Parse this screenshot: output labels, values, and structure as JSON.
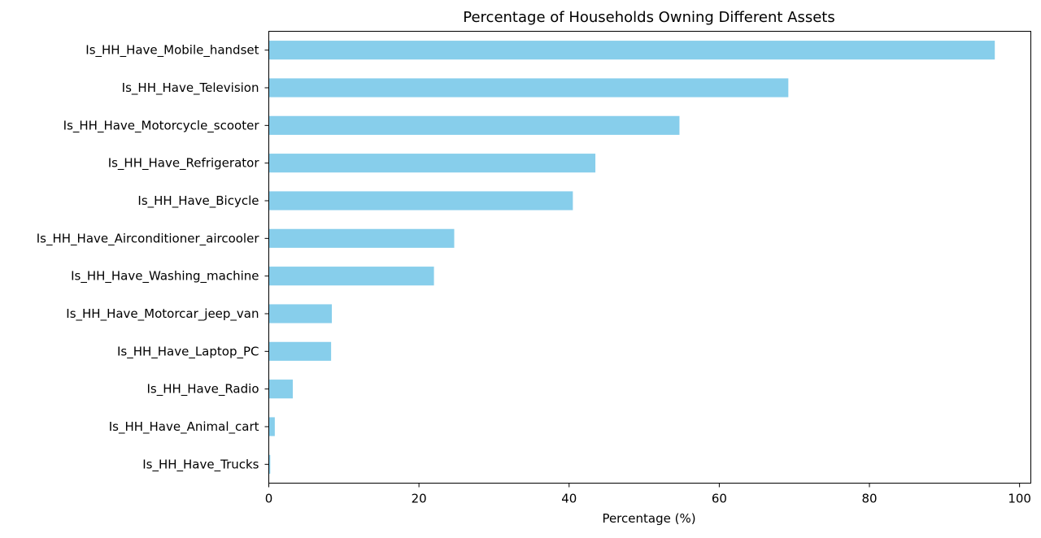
{
  "chart_data": {
    "type": "bar",
    "orientation": "horizontal",
    "title": "Percentage of Households Owning Different Assets",
    "xlabel": "Percentage (%)",
    "ylabel": "",
    "xlim": [
      0,
      101.5
    ],
    "xticks": [
      0,
      20,
      40,
      60,
      80,
      100
    ],
    "grid": false,
    "bar_color": "#87ceeb",
    "categories": [
      "Is_HH_Have_Mobile_handset",
      "Is_HH_Have_Television",
      "Is_HH_Have_Motorcycle_scooter",
      "Is_HH_Have_Refrigerator",
      "Is_HH_Have_Bicycle",
      "Is_HH_Have_Airconditioner_aircooler",
      "Is_HH_Have_Washing_machine",
      "Is_HH_Have_Motorcar_jeep_van",
      "Is_HH_Have_Laptop_PC",
      "Is_HH_Have_Radio",
      "Is_HH_Have_Animal_cart",
      "Is_HH_Have_Trucks"
    ],
    "values": [
      96.7,
      69.2,
      54.7,
      43.5,
      40.5,
      24.7,
      22.0,
      8.4,
      8.3,
      3.2,
      0.8,
      0.2
    ]
  }
}
